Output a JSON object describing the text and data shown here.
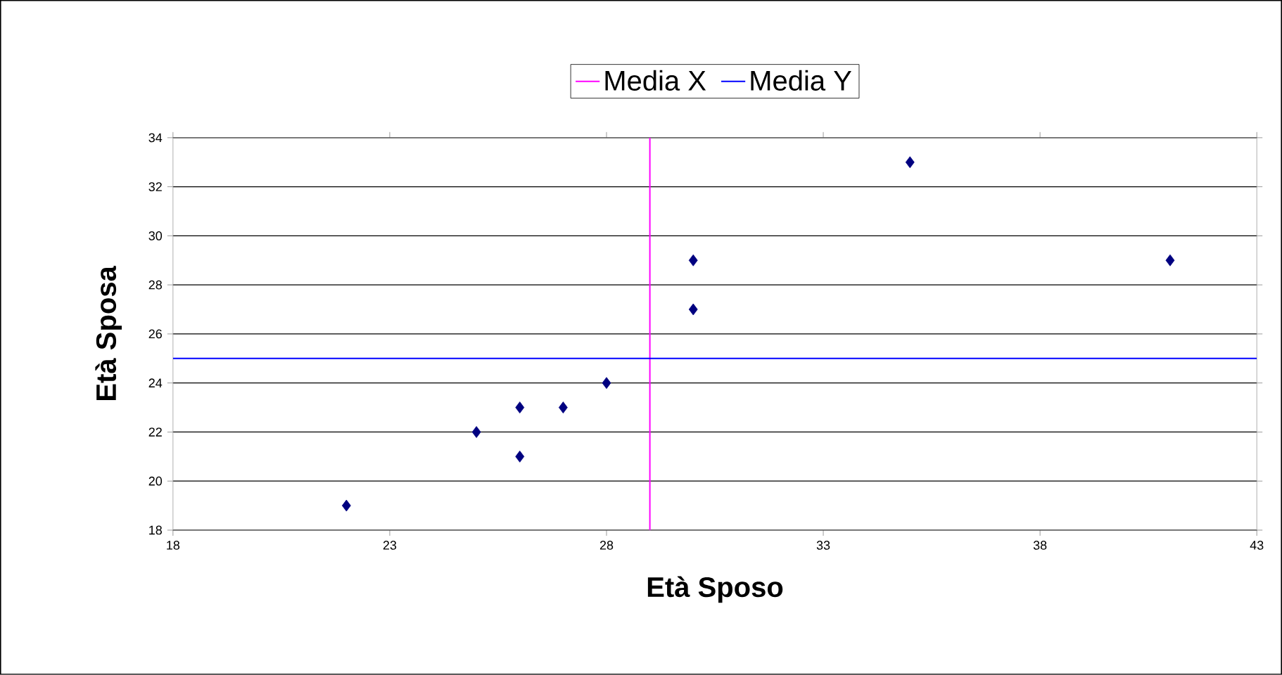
{
  "chart_data": {
    "type": "scatter",
    "xlabel": "Età Sposo",
    "ylabel": "Età Sposa",
    "series": [
      {
        "color": "#000080",
        "x": [
          22,
          25,
          26,
          26,
          27,
          28,
          30,
          30,
          35,
          41
        ],
        "values": [
          19,
          22,
          23,
          21,
          23,
          24,
          29,
          27,
          33,
          29
        ]
      }
    ],
    "xlim": [
      18,
      43
    ],
    "xticks": [
      18,
      23,
      28,
      33,
      38,
      43
    ],
    "ylim": [
      18,
      34
    ],
    "yticks": [
      18,
      20,
      22,
      24,
      26,
      28,
      30,
      32,
      34
    ],
    "ref_lines": [
      {
        "axis": "x",
        "value": 29,
        "label": "Media X",
        "color": "#ff00ff"
      },
      {
        "axis": "y",
        "value": 25,
        "label": "Media Y",
        "color": "#0000ff"
      }
    ],
    "grid": "y",
    "legend": "top",
    "marker": "diamond"
  }
}
